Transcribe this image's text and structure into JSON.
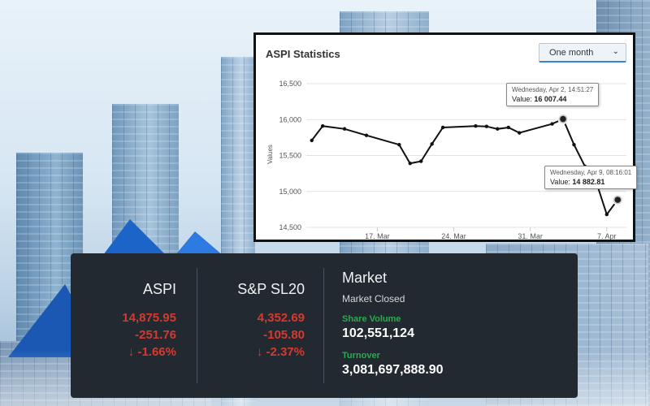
{
  "chart_panel": {
    "title": "ASPI Statistics",
    "period_select": {
      "selected": "One month",
      "chevron_icon": "chevron-down-icon"
    }
  },
  "chart_data": {
    "type": "line",
    "ylabel": "Values",
    "ylim": [
      14500,
      16500
    ],
    "yticks": [
      14500,
      15000,
      15500,
      16000,
      16500
    ],
    "ytick_labels": [
      "14,500",
      "15,000",
      "15,500",
      "16,000",
      "16,500"
    ],
    "xtick_labels": [
      "17. Mar",
      "24. Mar",
      "31. Mar",
      "7. Apr"
    ],
    "xticks_day_index": [
      17,
      24,
      31,
      38
    ],
    "grid": true,
    "series": [
      {
        "x_day_index": [
          11,
          12,
          14,
          16,
          19,
          20,
          21,
          22,
          23,
          26,
          27,
          28,
          29,
          30,
          33,
          34,
          35,
          36,
          37,
          38,
          39
        ],
        "values": [
          15710,
          15910,
          15870,
          15780,
          15650,
          15390,
          15420,
          15660,
          15890,
          15910,
          15905,
          15870,
          15890,
          15815,
          15940,
          16007.44,
          15650,
          15350,
          15150,
          14680,
          14882.81
        ]
      }
    ],
    "color": "#111111",
    "tooltips": [
      {
        "date": "Wednesday, Apr 2, 14:51:27",
        "label": "Value:",
        "value": "16 007.44"
      },
      {
        "date": "Wednesday, Apr 9, 08:16:01",
        "label": "Value:",
        "value": "14 882.81"
      }
    ]
  },
  "indices": [
    {
      "name": "ASPI",
      "value": "14,875.95",
      "change": "-251.76",
      "percent": "↓ -1.66%"
    },
    {
      "name": "S&P SL20",
      "value": "4,352.69",
      "change": "-105.80",
      "percent": "↓ -2.37%"
    }
  ],
  "market": {
    "title": "Market",
    "status": "Market Closed",
    "share_volume_label": "Share Volume",
    "share_volume": "102,551,124",
    "turnover_label": "Turnover",
    "turnover": "3,081,697,888.90"
  },
  "colors": {
    "negative": "#d43a2f",
    "positive_label": "#2fa84f",
    "panel_bg": "#222930"
  }
}
